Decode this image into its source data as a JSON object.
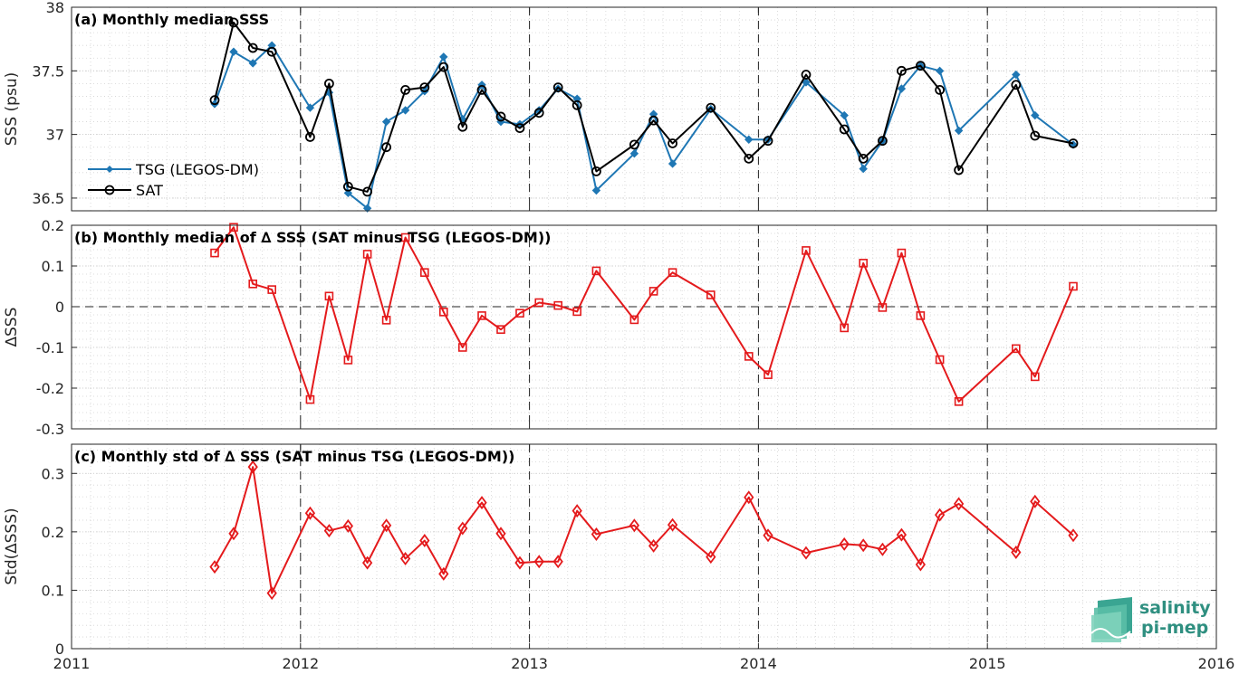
{
  "colors": {
    "tsg": "#1f77b4",
    "sat": "#000000",
    "delta": "#e41a1c",
    "logo": "#2f8f80",
    "grid": "#d4d4d4"
  },
  "logo": {
    "line1": "salinity",
    "line2": "pi-mep"
  },
  "chart_data": [
    {
      "type": "line",
      "title": "(a) Monthly median SSS",
      "ylabel": "SSS (psu)",
      "xlim": [
        2011,
        2016
      ],
      "ylim": [
        36.4,
        38
      ],
      "yticks": [
        36.5,
        37,
        37.5,
        38
      ],
      "ytick_labels": [
        "36.5",
        "37",
        "37.5",
        "38"
      ],
      "grid": true,
      "legend": "left",
      "x": [
        2011.625,
        2011.708,
        2011.792,
        2011.875,
        2012.042,
        2012.125,
        2012.208,
        2012.292,
        2012.375,
        2012.458,
        2012.542,
        2012.625,
        2012.708,
        2012.792,
        2012.875,
        2012.958,
        2013.042,
        2013.125,
        2013.208,
        2013.292,
        2013.458,
        2013.542,
        2013.625,
        2013.792,
        2013.958,
        2014.042,
        2014.208,
        2014.375,
        2014.458,
        2014.542,
        2014.625,
        2014.708,
        2014.792,
        2014.875,
        2015.125,
        2015.208,
        2015.375
      ],
      "series": [
        {
          "name": "TSG (LEGOS-DM)",
          "marker": "diamond",
          "color": "#1f77b4",
          "values": [
            37.24,
            37.65,
            37.56,
            37.7,
            37.21,
            37.33,
            36.54,
            36.42,
            37.1,
            37.19,
            37.34,
            37.61,
            37.12,
            37.39,
            37.1,
            37.08,
            37.19,
            37.36,
            37.28,
            36.56,
            36.85,
            37.16,
            36.77,
            37.2,
            36.96,
            36.96,
            37.41,
            37.15,
            36.73,
            36.95,
            37.36,
            37.54,
            37.5,
            37.03,
            37.47,
            37.15,
            36.92
          ]
        },
        {
          "name": "SAT",
          "marker": "circle",
          "color": "#000000",
          "values": [
            37.27,
            37.88,
            37.68,
            37.65,
            36.98,
            37.4,
            36.59,
            36.55,
            36.9,
            37.35,
            37.37,
            37.53,
            37.06,
            37.35,
            37.14,
            37.05,
            37.17,
            37.37,
            37.23,
            36.71,
            36.92,
            37.11,
            36.93,
            37.21,
            36.81,
            36.95,
            37.47,
            37.04,
            36.81,
            36.95,
            37.5,
            37.54,
            37.35,
            36.72,
            37.39,
            36.99,
            36.93
          ]
        }
      ]
    },
    {
      "type": "line",
      "title": "(b) Monthly median of ∆ SSS (SAT minus TSG (LEGOS-DM))",
      "ylabel": "∆SSS",
      "xlim": [
        2011,
        2016
      ],
      "ylim": [
        -0.3,
        0.2
      ],
      "yticks": [
        -0.3,
        -0.2,
        -0.1,
        0,
        0.1,
        0.2
      ],
      "ytick_labels": [
        "-0.3",
        "-0.2",
        "-0.1",
        "0",
        "0.1",
        "0.2"
      ],
      "grid": true,
      "x": [
        2011.625,
        2011.708,
        2011.792,
        2011.875,
        2012.042,
        2012.125,
        2012.208,
        2012.292,
        2012.375,
        2012.458,
        2012.542,
        2012.625,
        2012.708,
        2012.792,
        2012.875,
        2012.958,
        2013.042,
        2013.125,
        2013.208,
        2013.292,
        2013.458,
        2013.542,
        2013.625,
        2013.792,
        2013.958,
        2014.042,
        2014.208,
        2014.375,
        2014.458,
        2014.542,
        2014.625,
        2014.708,
        2014.792,
        2014.875,
        2015.125,
        2015.208,
        2015.375
      ],
      "series": [
        {
          "marker": "square",
          "color": "#e41a1c",
          "values": [
            0.132,
            0.195,
            0.056,
            0.042,
            -0.228,
            0.026,
            -0.131,
            0.129,
            -0.033,
            0.17,
            0.084,
            -0.013,
            -0.1,
            -0.022,
            -0.056,
            -0.016,
            0.01,
            0.003,
            -0.012,
            0.088,
            -0.032,
            0.038,
            0.084,
            0.029,
            -0.122,
            -0.167,
            0.138,
            -0.052,
            0.107,
            -0.002,
            0.132,
            -0.022,
            -0.13,
            -0.233,
            -0.103,
            -0.172,
            0.05
          ]
        }
      ]
    },
    {
      "type": "line",
      "title": "(c) Monthly std of ∆ SSS (SAT minus TSG (LEGOS-DM))",
      "ylabel": "Std(∆SSS)",
      "xlim": [
        2011,
        2016
      ],
      "ylim": [
        0,
        0.35
      ],
      "yticks": [
        0,
        0.1,
        0.2,
        0.3
      ],
      "ytick_labels": [
        "0",
        "0.1",
        "0.2",
        "0.3"
      ],
      "xticks": [
        2011,
        2012,
        2013,
        2014,
        2015,
        2016
      ],
      "xtick_labels": [
        "2011",
        "2012",
        "2013",
        "2014",
        "2015",
        "2016"
      ],
      "grid": true,
      "x": [
        2011.625,
        2011.708,
        2011.792,
        2011.875,
        2012.042,
        2012.125,
        2012.208,
        2012.292,
        2012.375,
        2012.458,
        2012.542,
        2012.625,
        2012.708,
        2012.792,
        2012.875,
        2012.958,
        2013.042,
        2013.125,
        2013.208,
        2013.292,
        2013.458,
        2013.542,
        2013.625,
        2013.792,
        2013.958,
        2014.042,
        2014.208,
        2014.375,
        2014.458,
        2014.542,
        2014.625,
        2014.708,
        2014.792,
        2014.875,
        2015.125,
        2015.208,
        2015.375
      ],
      "series": [
        {
          "marker": "diamond",
          "color": "#e41a1c",
          "values": [
            0.14,
            0.197,
            0.311,
            0.095,
            0.232,
            0.202,
            0.21,
            0.147,
            0.211,
            0.154,
            0.185,
            0.128,
            0.206,
            0.25,
            0.197,
            0.147,
            0.149,
            0.149,
            0.236,
            0.196,
            0.211,
            0.176,
            0.212,
            0.157,
            0.259,
            0.194,
            0.164,
            0.179,
            0.177,
            0.17,
            0.195,
            0.144,
            0.229,
            0.248,
            0.165,
            0.252,
            0.194
          ]
        }
      ]
    }
  ]
}
